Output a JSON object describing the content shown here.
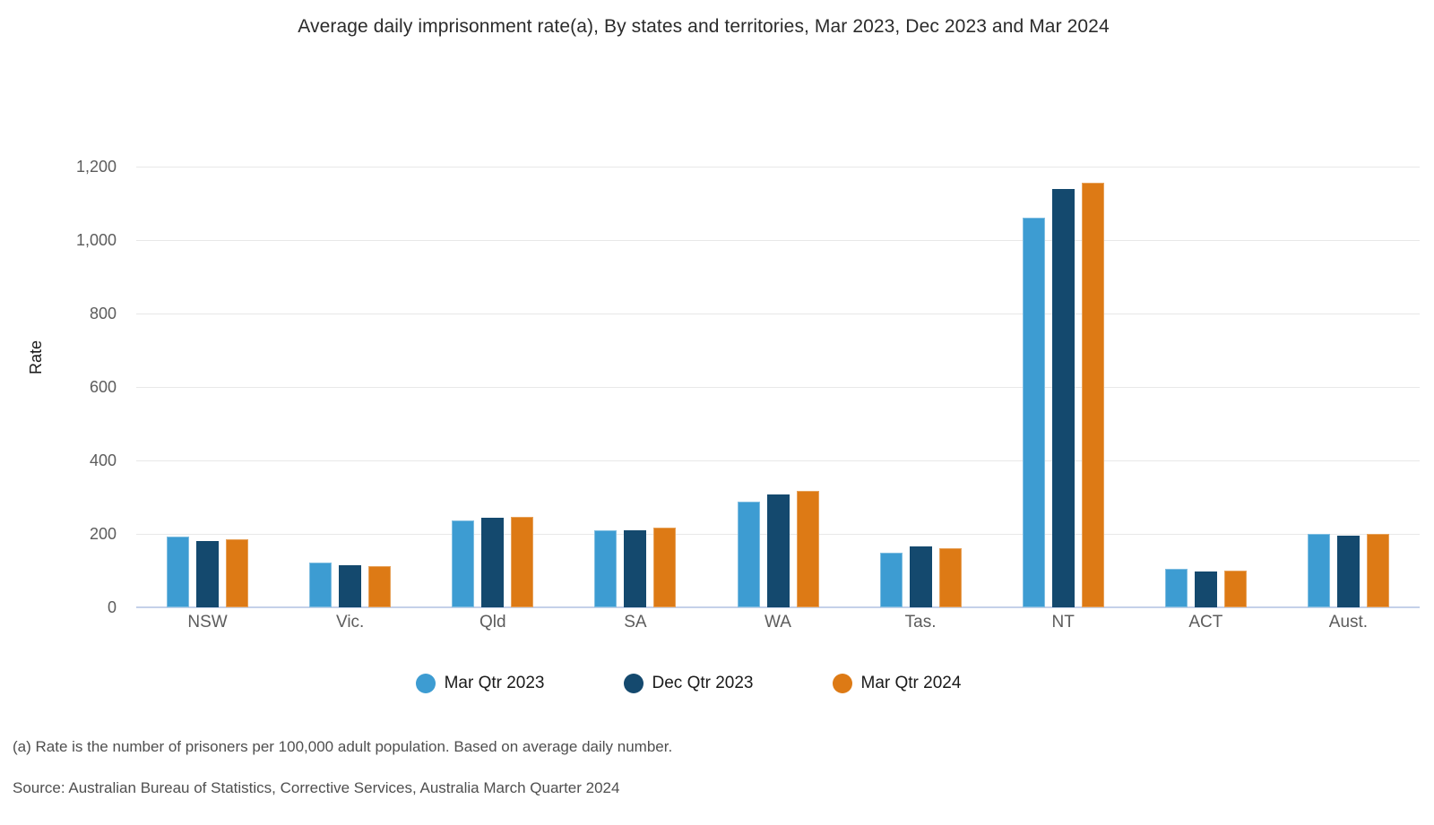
{
  "title": "Average daily imprisonment rate(a), By states and territories, Mar 2023, Dec 2023 and Mar 2024",
  "chart_data": {
    "type": "bar",
    "categories": [
      "NSW",
      "Vic.",
      "Qld",
      "SA",
      "WA",
      "Tas.",
      "NT",
      "ACT",
      "Aust."
    ],
    "series": [
      {
        "name": "Mar Qtr 2023",
        "color": "#3d9cd2",
        "values": [
          193,
          122,
          237,
          209,
          288,
          150,
          1060,
          105,
          201
        ]
      },
      {
        "name": "Dec Qtr 2023",
        "color": "#14496e",
        "values": [
          181,
          114,
          243,
          209,
          307,
          167,
          1139,
          98,
          196
        ]
      },
      {
        "name": "Mar Qtr 2024",
        "color": "#dd7a15",
        "values": [
          185,
          113,
          246,
          217,
          318,
          161,
          1155,
          101,
          201
        ]
      }
    ],
    "ylabel": "Rate",
    "xlabel": "",
    "ylim": [
      0,
      1200
    ],
    "yticks": [
      0,
      200,
      400,
      600,
      800,
      1000,
      1200
    ],
    "ytick_labels": [
      "0",
      "200",
      "400",
      "600",
      "800",
      "1,000",
      "1,200"
    ],
    "grid": "horizontal",
    "legend_position": "bottom"
  },
  "footnotes": {
    "note_a": "(a) Rate is the number of prisoners per 100,000 adult population. Based on average daily number.",
    "source": "Source: Australian Bureau of Statistics, Corrective Services, Australia March Quarter 2024"
  }
}
